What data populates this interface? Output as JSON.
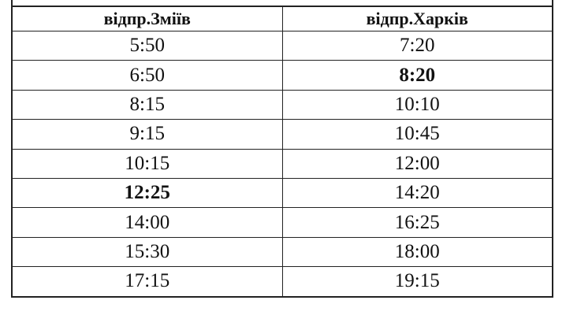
{
  "table": {
    "headers": [
      "відпр.Зміїв",
      "відпр.Харків"
    ],
    "rows": [
      {
        "zmiiv": "5:50",
        "kharkiv": "7:20",
        "bold_zmiiv": false,
        "bold_kharkiv": false
      },
      {
        "zmiiv": "6:50",
        "kharkiv": "8:20",
        "bold_zmiiv": false,
        "bold_kharkiv": true
      },
      {
        "zmiiv": "8:15",
        "kharkiv": "10:10",
        "bold_zmiiv": false,
        "bold_kharkiv": false
      },
      {
        "zmiiv": "9:15",
        "kharkiv": "10:45",
        "bold_zmiiv": false,
        "bold_kharkiv": false
      },
      {
        "zmiiv": "10:15",
        "kharkiv": "12:00",
        "bold_zmiiv": false,
        "bold_kharkiv": false
      },
      {
        "zmiiv": "12:25",
        "kharkiv": "14:20",
        "bold_zmiiv": true,
        "bold_kharkiv": false
      },
      {
        "zmiiv": "14:00",
        "kharkiv": "16:25",
        "bold_zmiiv": false,
        "bold_kharkiv": false
      },
      {
        "zmiiv": "15:30",
        "kharkiv": "18:00",
        "bold_zmiiv": false,
        "bold_kharkiv": false
      },
      {
        "zmiiv": "17:15",
        "kharkiv": "19:15",
        "bold_zmiiv": false,
        "bold_kharkiv": false
      }
    ]
  }
}
